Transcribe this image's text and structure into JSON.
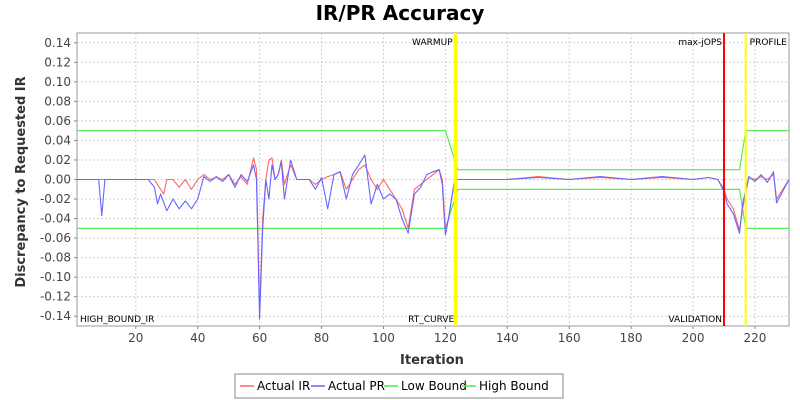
{
  "chart_data": {
    "type": "line",
    "title": "IR/PR Accuracy",
    "xlabel": "Iteration",
    "ylabel": "Discrepancy to Requested IR",
    "xlim": [
      1,
      231
    ],
    "ylim": [
      -0.15,
      0.15
    ],
    "x_ticks": [
      20,
      40,
      60,
      80,
      100,
      120,
      140,
      160,
      180,
      200,
      220
    ],
    "y_ticks": [
      -0.14,
      -0.12,
      -0.1,
      -0.08,
      -0.06,
      -0.04,
      -0.02,
      0.0,
      0.02,
      0.04,
      0.06,
      0.08,
      0.1,
      0.12,
      0.14
    ],
    "y_tick_labels": [
      "-0.14",
      "-0.12",
      "-0.10",
      "-0.08",
      "-0.06",
      "-0.04",
      "-0.02",
      "0.00",
      "0.02",
      "0.04",
      "0.06",
      "0.08",
      "0.10",
      "0.12",
      "0.14"
    ],
    "grid": true,
    "legend_position": "bottom",
    "markers": [
      {
        "x": 123,
        "label": "WARMUP",
        "color": "#ffff00",
        "label_side": "left",
        "label_pos": "top"
      },
      {
        "x": 123.5,
        "label": "RT_CURVE",
        "color": "#ffff00",
        "label_side": "left",
        "label_pos": "bottom"
      },
      {
        "x": 210,
        "label": "max-jOPS",
        "color": "#ff0000",
        "label_side": "left",
        "label_pos": "top"
      },
      {
        "x": 210,
        "label": "VALIDATION",
        "color": "#ff0000",
        "label_side": "left",
        "label_pos": "bottom"
      },
      {
        "x": 217,
        "label": "PROFILE",
        "color": "#ffff00",
        "label_side": "right",
        "label_pos": "top"
      }
    ],
    "corner_label": "HIGH_BOUND_IR",
    "series": [
      {
        "name": "Actual IR",
        "color": "#ff6666",
        "points": [
          [
            1,
            0
          ],
          [
            5,
            0
          ],
          [
            8,
            0
          ],
          [
            10,
            0
          ],
          [
            15,
            0
          ],
          [
            20,
            0
          ],
          [
            24,
            0
          ],
          [
            26,
            0
          ],
          [
            28,
            -0.01
          ],
          [
            29,
            -0.015
          ],
          [
            30,
            0
          ],
          [
            32,
            0
          ],
          [
            34,
            -0.008
          ],
          [
            36,
            0
          ],
          [
            38,
            -0.01
          ],
          [
            40,
            0
          ],
          [
            42,
            0.005
          ],
          [
            44,
            0
          ],
          [
            46,
            0.002
          ],
          [
            48,
            0
          ],
          [
            50,
            0.005
          ],
          [
            52,
            -0.005
          ],
          [
            54,
            0.003
          ],
          [
            56,
            -0.005
          ],
          [
            58,
            0.022
          ],
          [
            59,
            0.01
          ],
          [
            60,
            -0.135
          ],
          [
            61,
            -0.04
          ],
          [
            62,
            0
          ],
          [
            63,
            0.02
          ],
          [
            64,
            0.022
          ],
          [
            65,
            0
          ],
          [
            66,
            0.005
          ],
          [
            67,
            0.02
          ],
          [
            68,
            -0.005
          ],
          [
            70,
            0.015
          ],
          [
            72,
            0
          ],
          [
            74,
            0
          ],
          [
            76,
            0
          ],
          [
            78,
            -0.005
          ],
          [
            80,
            0
          ],
          [
            82,
            0.003
          ],
          [
            84,
            0.005
          ],
          [
            86,
            0.008
          ],
          [
            88,
            -0.01
          ],
          [
            90,
            0
          ],
          [
            92,
            0.01
          ],
          [
            94,
            0.015
          ],
          [
            96,
            0
          ],
          [
            98,
            -0.01
          ],
          [
            100,
            0
          ],
          [
            102,
            -0.01
          ],
          [
            104,
            -0.02
          ],
          [
            106,
            -0.03
          ],
          [
            108,
            -0.05
          ],
          [
            110,
            -0.01
          ],
          [
            112,
            -0.005
          ],
          [
            114,
            0
          ],
          [
            116,
            0.005
          ],
          [
            118,
            0.01
          ],
          [
            119,
            0
          ],
          [
            120,
            -0.05
          ],
          [
            121,
            -0.04
          ],
          [
            122,
            -0.02
          ],
          [
            123,
            0
          ],
          [
            130,
            0
          ],
          [
            140,
            0
          ],
          [
            150,
            0.003
          ],
          [
            160,
            0
          ],
          [
            170,
            0.002
          ],
          [
            180,
            0
          ],
          [
            190,
            0.002
          ],
          [
            200,
            0
          ],
          [
            205,
            0.002
          ],
          [
            208,
            0
          ],
          [
            210,
            -0.01
          ],
          [
            211,
            -0.02
          ],
          [
            213,
            -0.03
          ],
          [
            215,
            -0.052
          ],
          [
            216,
            -0.03
          ],
          [
            218,
            0.002
          ],
          [
            220,
            0
          ],
          [
            222,
            0.003
          ],
          [
            224,
            0
          ],
          [
            226,
            0.005
          ],
          [
            227,
            -0.02
          ],
          [
            229,
            -0.01
          ],
          [
            231,
            0
          ]
        ]
      },
      {
        "name": "Actual PR",
        "color": "#6666ff",
        "points": [
          [
            1,
            0
          ],
          [
            5,
            0
          ],
          [
            8,
            0
          ],
          [
            9,
            -0.037
          ],
          [
            10,
            0
          ],
          [
            15,
            0
          ],
          [
            20,
            0
          ],
          [
            24,
            0
          ],
          [
            26,
            -0.008
          ],
          [
            27,
            -0.025
          ],
          [
            28,
            -0.015
          ],
          [
            30,
            -0.032
          ],
          [
            32,
            -0.02
          ],
          [
            34,
            -0.03
          ],
          [
            36,
            -0.022
          ],
          [
            38,
            -0.03
          ],
          [
            40,
            -0.02
          ],
          [
            42,
            0.003
          ],
          [
            44,
            -0.002
          ],
          [
            46,
            0.003
          ],
          [
            48,
            -0.002
          ],
          [
            50,
            0.005
          ],
          [
            52,
            -0.008
          ],
          [
            54,
            0.005
          ],
          [
            56,
            -0.002
          ],
          [
            58,
            0.015
          ],
          [
            59,
            0
          ],
          [
            60,
            -0.143
          ],
          [
            61,
            -0.05
          ],
          [
            62,
            0
          ],
          [
            63,
            -0.02
          ],
          [
            64,
            0.015
          ],
          [
            65,
            0
          ],
          [
            66,
            0.005
          ],
          [
            67,
            0.018
          ],
          [
            68,
            -0.02
          ],
          [
            70,
            0.02
          ],
          [
            72,
            0
          ],
          [
            74,
            0
          ],
          [
            76,
            0
          ],
          [
            78,
            -0.01
          ],
          [
            80,
            0.002
          ],
          [
            82,
            -0.03
          ],
          [
            84,
            0.005
          ],
          [
            86,
            0.008
          ],
          [
            88,
            -0.02
          ],
          [
            90,
            0.005
          ],
          [
            92,
            0.015
          ],
          [
            94,
            0.025
          ],
          [
            96,
            -0.025
          ],
          [
            98,
            -0.005
          ],
          [
            100,
            -0.02
          ],
          [
            102,
            -0.015
          ],
          [
            104,
            -0.02
          ],
          [
            106,
            -0.04
          ],
          [
            108,
            -0.055
          ],
          [
            110,
            -0.015
          ],
          [
            112,
            -0.008
          ],
          [
            114,
            0.005
          ],
          [
            116,
            0.008
          ],
          [
            118,
            0.01
          ],
          [
            119,
            -0.005
          ],
          [
            120,
            -0.057
          ],
          [
            121,
            -0.04
          ],
          [
            122,
            -0.02
          ],
          [
            123,
            0
          ],
          [
            130,
            0
          ],
          [
            140,
            0
          ],
          [
            150,
            0.002
          ],
          [
            160,
            0
          ],
          [
            170,
            0.003
          ],
          [
            180,
            0
          ],
          [
            190,
            0.003
          ],
          [
            200,
            0
          ],
          [
            205,
            0.002
          ],
          [
            208,
            0
          ],
          [
            210,
            -0.012
          ],
          [
            211,
            -0.025
          ],
          [
            213,
            -0.035
          ],
          [
            215,
            -0.055
          ],
          [
            216,
            -0.025
          ],
          [
            218,
            0.003
          ],
          [
            220,
            -0.002
          ],
          [
            222,
            0.005
          ],
          [
            224,
            -0.003
          ],
          [
            226,
            0.008
          ],
          [
            227,
            -0.024
          ],
          [
            229,
            -0.012
          ],
          [
            231,
            0
          ]
        ]
      },
      {
        "name": "Low Bound",
        "color": "#44ee44",
        "points": [
          [
            1,
            -0.05
          ],
          [
            120,
            -0.05
          ],
          [
            124,
            -0.01
          ],
          [
            210,
            -0.01
          ],
          [
            215,
            -0.01
          ],
          [
            217,
            -0.05
          ],
          [
            231,
            -0.05
          ]
        ]
      },
      {
        "name": "High Bound",
        "color": "#44ee44",
        "points": [
          [
            1,
            0.05
          ],
          [
            120,
            0.05
          ],
          [
            124,
            0.01
          ],
          [
            210,
            0.01
          ],
          [
            215,
            0.01
          ],
          [
            217,
            0.05
          ],
          [
            231,
            0.05
          ]
        ]
      }
    ]
  }
}
